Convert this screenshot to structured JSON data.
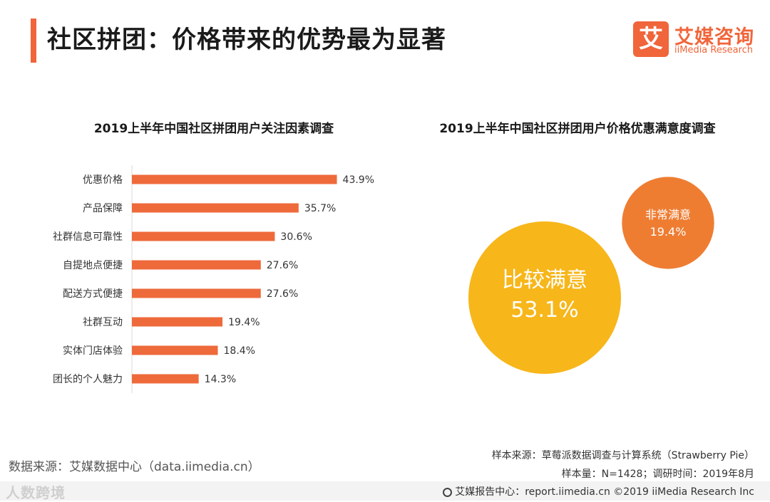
{
  "header": {
    "title": "社区拼团：价格带来的优势最为显著",
    "logo_mark": "艾",
    "logo_cn": "艾媒咨询",
    "logo_en": "iiMedia Research"
  },
  "colors": {
    "accent": "#f0653a",
    "bar": "#ee6a3b",
    "bubble_large": "#f7b61a",
    "bubble_small": "#ee7d32"
  },
  "chart_data": [
    {
      "type": "bar",
      "orientation": "horizontal",
      "title": "2019上半年中国社区拼团用户关注因素调查",
      "categories": [
        "优惠价格",
        "产品保障",
        "社群信息可靠性",
        "自提地点便捷",
        "配送方式便捷",
        "社群互动",
        "实体门店体验",
        "团长的个人魅力"
      ],
      "values": [
        43.9,
        35.7,
        30.6,
        27.6,
        27.6,
        19.4,
        18.4,
        14.3
      ],
      "value_labels": [
        "43.9%",
        "35.7%",
        "30.6%",
        "27.6%",
        "27.6%",
        "19.4%",
        "18.4%",
        "14.3%"
      ],
      "unit": "%",
      "xlim": [
        0,
        50
      ]
    },
    {
      "type": "bubble",
      "title": "2019上半年中国社区拼团用户价格优惠满意度调查",
      "categories": [
        "比较满意",
        "非常满意"
      ],
      "values": [
        53.1,
        19.4
      ],
      "value_labels": [
        "53.1%",
        "19.4%"
      ],
      "unit": "%"
    }
  ],
  "footer": {
    "source_left": "数据来源：艾媒数据中心（data.iimedia.cn）",
    "sample_source": "样本来源：草莓派数据调查与计算系统（Strawberry Pie）",
    "sample_size": "样本量：N=1428；调研时间：2019年8月",
    "report_center": "艾媒报告中心：report.iimedia.cn  ©2019  iiMedia Research  Inc",
    "watermark": "人数跨境"
  }
}
